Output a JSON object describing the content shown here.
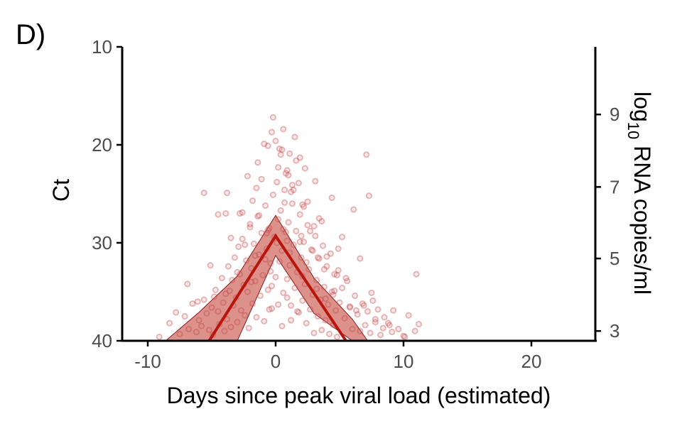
{
  "panel_label": "D)",
  "chart_data": {
    "type": "scatter",
    "xlabel": "Days since peak viral load (estimated)",
    "ylabel": "Ct",
    "y2label_main": "log",
    "y2label_sub": "10",
    "y2label_rest": " RNA copies/ml",
    "xlim": [
      -12,
      25
    ],
    "ylim": [
      10,
      40
    ],
    "y_reversed": true,
    "x_ticks": [
      -10,
      0,
      10,
      20
    ],
    "x_tick_labels": [
      "-10",
      "0",
      "10",
      "20"
    ],
    "y_ticks": [
      10,
      20,
      30,
      40
    ],
    "y_tick_labels": [
      "10",
      "20",
      "30",
      "40"
    ],
    "y2_ticks_ct": [
      16.9,
      24.3,
      31.6,
      39.0
    ],
    "y2_tick_labels": [
      "9",
      "7",
      "5",
      "3"
    ],
    "grid": false,
    "colors": {
      "points": "#d98c8c",
      "fit": "#b8150f",
      "ribbon": "#c0392b"
    },
    "fit_line": {
      "x": [
        -5.2,
        0,
        5.5
      ],
      "y": [
        40,
        29.3,
        40
      ]
    },
    "ribbon": {
      "x": [
        -8.6,
        -6,
        -3,
        0,
        3,
        6,
        7.2
      ],
      "lower": [
        40,
        37.1,
        33.4,
        27.2,
        33.6,
        37.8,
        40
      ],
      "upper": [
        40,
        40,
        40,
        31.3,
        37.2,
        40,
        40
      ]
    },
    "annotations": [
      {
        "x": -8.3,
        "y": 38.3
      },
      {
        "x": -7.5,
        "y": 39.1
      },
      {
        "x": -9.0,
        "y": 39.5
      },
      {
        "x": -6.4,
        "y": 39.7
      },
      {
        "x": -5.3,
        "y": 38.7
      },
      {
        "x": -4.2,
        "y": 36.5
      },
      {
        "x": -3.4,
        "y": 37.3
      },
      {
        "x": -2.1,
        "y": 38.9
      },
      {
        "x": -1.2,
        "y": 39.4
      },
      {
        "x": -0.7,
        "y": 40.0
      }
    ],
    "points": {
      "x": [
        -9.1,
        -8.3,
        -7.5,
        -7.1,
        -6.8,
        -6.5,
        -6.2,
        -6.0,
        -5.8,
        -5.6,
        -5.4,
        -5.2,
        -5.0,
        -4.9,
        -4.7,
        -4.5,
        -4.4,
        -4.2,
        -4.1,
        -4.0,
        -3.9,
        -3.8,
        -3.7,
        -3.6,
        -3.5,
        -3.4,
        -3.3,
        -3.2,
        -3.1,
        -3.0,
        -2.9,
        -2.8,
        -2.7,
        -2.6,
        -2.5,
        -2.4,
        -2.3,
        -2.2,
        -2.1,
        -2.0,
        -1.9,
        -1.8,
        -1.7,
        -1.6,
        -1.5,
        -1.4,
        -1.3,
        -1.2,
        -1.1,
        -1.0,
        -0.9,
        -0.8,
        -0.7,
        -0.6,
        -0.5,
        -0.4,
        -0.3,
        -0.2,
        -0.1,
        0.0,
        0.1,
        0.2,
        0.3,
        0.4,
        0.5,
        0.6,
        0.7,
        0.8,
        0.9,
        1.0,
        1.1,
        1.2,
        1.3,
        1.4,
        1.5,
        1.6,
        1.7,
        1.8,
        1.9,
        2.0,
        2.1,
        2.2,
        2.3,
        2.4,
        2.5,
        2.6,
        2.7,
        2.8,
        2.9,
        3.0,
        3.1,
        3.2,
        3.3,
        3.4,
        3.5,
        3.6,
        3.7,
        3.8,
        3.9,
        4.0,
        4.1,
        4.2,
        4.3,
        4.4,
        4.5,
        4.6,
        4.7,
        4.8,
        4.9,
        5.0,
        5.2,
        5.4,
        5.6,
        5.8,
        6.0,
        6.2,
        6.4,
        6.6,
        6.8,
        7.0,
        7.2,
        7.4,
        7.6,
        7.8,
        8.0,
        8.2,
        8.5,
        8.8,
        9.2,
        9.6,
        10.0,
        10.4,
        10.9,
        11.2,
        -1.4,
        -0.9,
        -0.3,
        0.3,
        0.8,
        1.4,
        1.9,
        2.5,
        3.1,
        -4.5,
        -3.8,
        -2.2,
        -0.6,
        0.9,
        2.2,
        3.6,
        5.2,
        6.1,
        -2.8,
        -1.5,
        1.1,
        2.7,
        4.4,
        -0.2,
        0.6,
        1.5,
        -3.5,
        -1.8,
        0.2,
        1.8,
        3.4,
        4.9,
        6.6,
        -6.9,
        -5.1,
        -2.6,
        -1.1,
        0.4,
        1.2,
        2.1,
        3.0,
        4.0,
        5.5,
        7.5,
        -0.6,
        0.0,
        0.5,
        1.0,
        1.6,
        2.3,
        -2.4,
        -1.3,
        0.7,
        1.3,
        2.0,
        2.9,
        3.8,
        4.6,
        -7.8,
        -6.1,
        -4.8,
        -3.0,
        -1.6,
        -0.4,
        0.9,
        2.4,
        3.9,
        5.8,
        8.4,
        10.1,
        -1.9,
        -0.8,
        0.1,
        1.1,
        2.1,
        3.2,
        4.5,
        6.3,
        7.8,
        9.1,
        0.2,
        0.9,
        1.7,
        -0.3,
        -0.5,
        0.5,
        1.2,
        7.1,
        7.3,
        -5.6,
        -3.9,
        -2.0,
        -0.7,
        0.6,
        1.9,
        3.3,
        4.8,
        6.9,
        8.9,
        11.0
      ],
      "y": [
        39.6,
        38.2,
        39.3,
        37.5,
        38.8,
        36.2,
        39.1,
        37.9,
        38.5,
        35.8,
        37.2,
        38.9,
        36.6,
        39.4,
        34.8,
        37.0,
        38.3,
        33.6,
        36.1,
        39.0,
        35.2,
        37.8,
        32.4,
        34.9,
        38.6,
        33.8,
        36.4,
        31.5,
        35.6,
        38.1,
        30.4,
        33.2,
        36.9,
        29.6,
        34.3,
        37.4,
        31.8,
        35.0,
        38.7,
        28.4,
        32.6,
        36.2,
        30.1,
        33.9,
        37.6,
        27.3,
        31.2,
        35.4,
        29.0,
        33.3,
        38.0,
        26.2,
        30.6,
        34.8,
        28.5,
        32.1,
        36.7,
        25.1,
        29.4,
        33.5,
        23.8,
        27.6,
        31.9,
        26.7,
        30.8,
        35.1,
        24.6,
        28.9,
        33.7,
        27.9,
        32.3,
        36.4,
        26.0,
        30.2,
        34.6,
        28.8,
        33.0,
        37.1,
        27.1,
        31.5,
        35.9,
        29.9,
        34.2,
        38.2,
        28.2,
        32.7,
        36.8,
        30.7,
        35.3,
        39.2,
        29.3,
        33.8,
        37.5,
        31.6,
        35.8,
        38.9,
        30.3,
        34.5,
        37.9,
        32.4,
        36.3,
        39.3,
        31.1,
        35.0,
        38.4,
        33.2,
        36.9,
        39.6,
        32.8,
        36.1,
        34.6,
        37.7,
        33.9,
        36.5,
        38.8,
        35.4,
        37.3,
        39.0,
        36.2,
        38.4,
        37.0,
        39.2,
        35.9,
        38.1,
        36.8,
        39.4,
        37.6,
        38.2,
        36.9,
        38.8,
        39.5,
        37.4,
        39.0,
        38.3,
        21.8,
        19.9,
        18.7,
        20.4,
        22.9,
        24.6,
        21.3,
        25.8,
        23.7,
        27.1,
        24.9,
        23.2,
        20.1,
        22.6,
        26.3,
        27.8,
        29.4,
        26.6,
        27.0,
        24.4,
        20.9,
        28.8,
        25.4,
        17.2,
        18.4,
        19.2,
        29.5,
        25.7,
        22.3,
        23.9,
        27.5,
        30.6,
        31.6,
        34.2,
        32.3,
        26.9,
        23.5,
        21.0,
        24.8,
        26.1,
        28.3,
        31.4,
        33.6,
        35.1,
        28.7,
        19.6,
        20.5,
        23.1,
        21.6,
        22.4,
        30.2,
        27.2,
        25.9,
        24.1,
        29.3,
        30.8,
        32.7,
        34.9,
        37.1,
        36.0,
        35.5,
        33.0,
        31.3,
        32.9,
        29.8,
        32.0,
        35.7,
        36.6,
        38.7,
        39.6,
        34.0,
        31.7,
        30.0,
        31.0,
        33.4,
        34.7,
        35.3,
        36.9,
        37.8,
        39.1,
        36.3,
        35.6,
        37.0,
        34.4,
        36.8,
        38.5,
        37.9,
        21.0,
        25.2,
        24.9,
        27.0,
        28.1,
        29.0,
        28.6,
        29.9,
        31.5,
        33.3,
        36.4,
        38.4,
        33.2
      ]
    }
  }
}
